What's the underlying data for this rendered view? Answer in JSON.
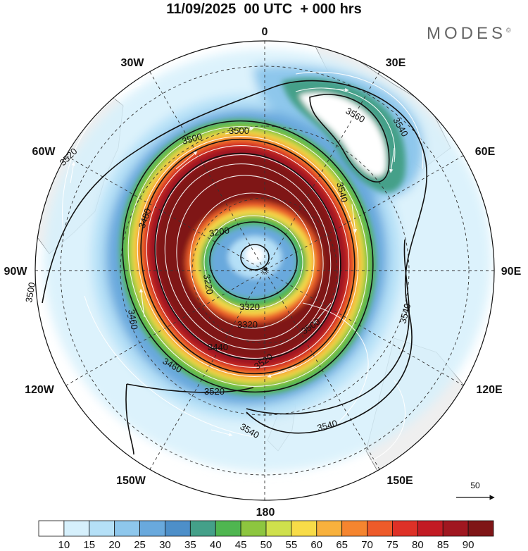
{
  "title": "11/09/2025  00 UTC  + 000 hrs",
  "brand": "MODES",
  "brand_mark": "©",
  "lon_labels": [
    "0",
    "30E",
    "60E",
    "90E",
    "120E",
    "150E",
    "180",
    "150W",
    "120W",
    "90W",
    "60W",
    "30W"
  ],
  "contours": [
    {
      "label": "3200",
      "kind": "inner"
    },
    {
      "label": "3220",
      "kind": "inner"
    },
    {
      "label": "3320",
      "kind": "band"
    },
    {
      "label": "3440",
      "kind": "band"
    },
    {
      "label": "3460",
      "kind": "band"
    },
    {
      "label": "3480",
      "kind": "band"
    },
    {
      "label": "3500",
      "kind": "outer"
    },
    {
      "label": "3520",
      "kind": "outer"
    },
    {
      "label": "3540",
      "kind": "outer"
    },
    {
      "label": "3560",
      "kind": "ridge"
    }
  ],
  "contour_labels_visible": [
    "3200",
    "3220",
    "3320",
    "3320",
    "3440",
    "3460",
    "3460",
    "3480",
    "3500",
    "3500",
    "3500",
    "3500",
    "3520",
    "3520",
    "3520",
    "3540",
    "3540",
    "3540",
    "3540",
    "3540",
    "3560"
  ],
  "reference_vector": {
    "label": "50"
  },
  "colorbar": {
    "ticks": [
      "10",
      "15",
      "20",
      "25",
      "30",
      "35",
      "40",
      "45",
      "50",
      "55",
      "60",
      "65",
      "70",
      "75",
      "80",
      "85",
      "90"
    ],
    "colors": [
      "#ffffff",
      "#d6f0fc",
      "#b5e0f7",
      "#8ec7ec",
      "#69a9dd",
      "#4d8fc9",
      "#44a089",
      "#4fb650",
      "#8dc63f",
      "#cfe04c",
      "#f8dc48",
      "#f8b13d",
      "#f5852f",
      "#ee5b2a",
      "#de3127",
      "#c21b24",
      "#a01720",
      "#7f1517"
    ]
  },
  "palette": {
    "land": "#efefef",
    "coast": "#777777",
    "contour": "#111111",
    "grid": "#333333"
  }
}
